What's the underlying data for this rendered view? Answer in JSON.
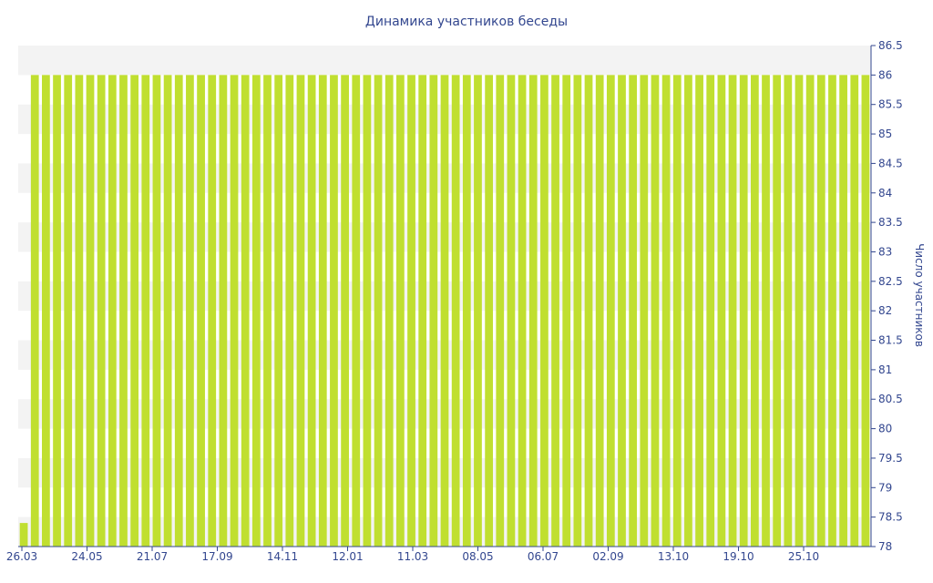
{
  "chart_data": {
    "type": "bar",
    "title": "Динамика участников беседы",
    "xlabel": "",
    "ylabel": "Число участников",
    "x_tick_labels": [
      "26.03",
      "24.05",
      "21.07",
      "17.09",
      "14.11",
      "12.01",
      "11.03",
      "08.05",
      "06.07",
      "02.09",
      "13.10",
      "19.10",
      "25.10"
    ],
    "y_tick_labels": [
      "78",
      "78.5",
      "79",
      "79.5",
      "80",
      "80.5",
      "81",
      "81.5",
      "82",
      "82.5",
      "83",
      "83.5",
      "84",
      "84.5",
      "85",
      "85.5",
      "86",
      "86.5"
    ],
    "ylim": [
      78,
      86.5
    ],
    "y_axis_position": "right",
    "grid": false,
    "legend": "none",
    "bar_color": "#c0df30",
    "axis_color": "#33478f",
    "series": [
      {
        "values": [
          78.4,
          86,
          86,
          86,
          86,
          86,
          86,
          86,
          86,
          86,
          86,
          86,
          86,
          86,
          86,
          86,
          86,
          86,
          86,
          86,
          86,
          86,
          86,
          86,
          86,
          86,
          86,
          86,
          86,
          86,
          86,
          86,
          86,
          86,
          86,
          86,
          86,
          86,
          86,
          86,
          86,
          86,
          86,
          86,
          86,
          86,
          86,
          86,
          86,
          86,
          86,
          86,
          86,
          86,
          86,
          86,
          86,
          86,
          86,
          86,
          86,
          86,
          86,
          86,
          86,
          86,
          86,
          86,
          86,
          86,
          86,
          86,
          86,
          86,
          86,
          86,
          86
        ]
      }
    ]
  }
}
